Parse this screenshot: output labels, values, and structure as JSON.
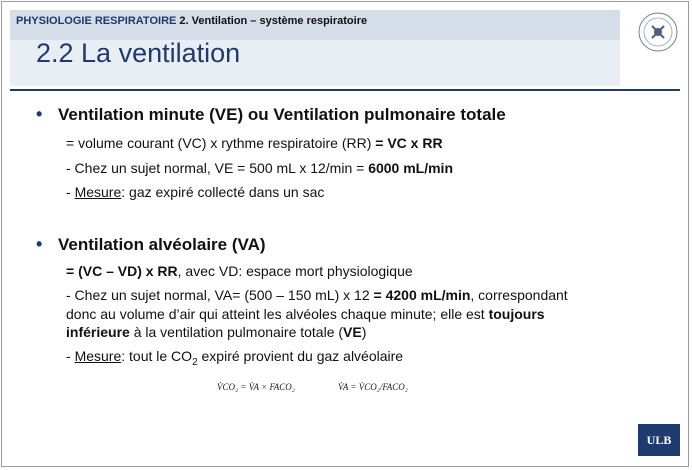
{
  "header": {
    "section": "PHYSIOLOGIE RESPIRATOIRE",
    "subsection": "2. Ventilation – système respiratoire"
  },
  "title": "2.2 La ventilation",
  "logo_seal": {
    "icon": "university-seal-icon"
  },
  "bullets": [
    {
      "heading": "Ventilation minute (VE) ou Ventilation pulmonaire totale",
      "l1_a": "= volume courant (VC) x rythme respiratoire (RR) ",
      "l1_b": "= VC x RR",
      "l2_a": "- Chez un sujet normal, VE = 500 mL x 12/min = ",
      "l2_b": "6000 mL/min",
      "l3_pre": "- ",
      "l3_u": "Mesure",
      "l3_post": ": gaz expiré collecté dans un sac"
    },
    {
      "heading": "Ventilation alvéolaire (VA)",
      "l1_b": "= (VC – VD) x RR",
      "l1_a": ", avec VD: espace mort physiologique",
      "l2_a": "- Chez un sujet normal, VA= (500 – 150 mL) x 12 ",
      "l2_b": "= 4200 mL/min",
      "l2_c": ", correspondant",
      "l3_a": "donc au volume d’air qui atteint les alvéoles chaque minute; elle est ",
      "l3_b": "toujours",
      "l4_b": "inférieure",
      "l4_a": " à la ventilation pulmonaire totale (",
      "l4_c": "VE",
      "l4_d": ")",
      "l5_pre": "- ",
      "l5_u": "Mesure",
      "l5_a": ": tout le CO",
      "l5_sub": "2",
      "l5_b": " expiré provient du gaz alvéolaire"
    }
  ],
  "formulas": [
    "V̇CO₂ = V̇A × FACO₂",
    "V̇A = V̇CO₂/FACO₂"
  ],
  "footer_logo": "ULB"
}
